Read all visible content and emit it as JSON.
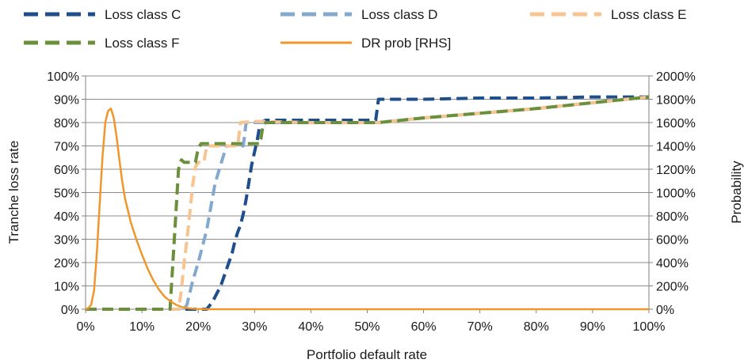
{
  "chart_data": {
    "type": "line",
    "title": "",
    "xlabel": "Portfolio default rate",
    "ylabel": "Tranche loss rate",
    "y2label": "Probability",
    "xlim": [
      0,
      100
    ],
    "ylim": [
      0,
      100
    ],
    "y2lim": [
      0,
      2000
    ],
    "x_ticks": [
      "0%",
      "10%",
      "20%",
      "30%",
      "40%",
      "50%",
      "60%",
      "70%",
      "80%",
      "90%",
      "100%"
    ],
    "y_ticks": [
      "0%",
      "10%",
      "20%",
      "30%",
      "40%",
      "50%",
      "60%",
      "70%",
      "80%",
      "90%",
      "100%"
    ],
    "y2_ticks": [
      "0%",
      "200%",
      "400%",
      "600%",
      "800%",
      "1000%",
      "1200%",
      "1400%",
      "1600%",
      "1800%",
      "2000%"
    ],
    "grid": "horizontal",
    "legend_position": "top",
    "series": [
      {
        "name": "Loss class C",
        "axis": "left",
        "style": "dashed",
        "color": "#1f4e8c",
        "points": [
          [
            0,
            0
          ],
          [
            21.5,
            0
          ],
          [
            22.5,
            3
          ],
          [
            24,
            10
          ],
          [
            26,
            24
          ],
          [
            26.5,
            29
          ],
          [
            27,
            33
          ],
          [
            27.5,
            36
          ],
          [
            28,
            41
          ],
          [
            28.5,
            47
          ],
          [
            29.5,
            62
          ],
          [
            30.5,
            73
          ],
          [
            31,
            80
          ],
          [
            32,
            81
          ],
          [
            51.5,
            81
          ],
          [
            52,
            90
          ],
          [
            60,
            90
          ],
          [
            70,
            90.5
          ],
          [
            80,
            90.5
          ],
          [
            90,
            91
          ],
          [
            100,
            91
          ]
        ]
      },
      {
        "name": "Loss class D",
        "axis": "left",
        "style": "dashed",
        "color": "#84a9cf",
        "points": [
          [
            0,
            0
          ],
          [
            17.5,
            0
          ],
          [
            18,
            2
          ],
          [
            19,
            12
          ],
          [
            20,
            20
          ],
          [
            21.5,
            34
          ],
          [
            23,
            54
          ],
          [
            24,
            62
          ],
          [
            25,
            70
          ],
          [
            28,
            70
          ],
          [
            28.5,
            80
          ],
          [
            40,
            80
          ],
          [
            48,
            80
          ],
          [
            52,
            80
          ],
          [
            60,
            82
          ],
          [
            70,
            84
          ],
          [
            80,
            86
          ],
          [
            90,
            88.5
          ],
          [
            100,
            91
          ]
        ]
      },
      {
        "name": "Loss class E",
        "axis": "left",
        "style": "dashed",
        "color": "#f7c492",
        "points": [
          [
            0,
            0
          ],
          [
            16.5,
            0
          ],
          [
            17,
            8
          ],
          [
            17.5,
            20
          ],
          [
            18,
            30
          ],
          [
            18.5,
            41
          ],
          [
            19,
            53
          ],
          [
            19.5,
            61
          ],
          [
            20,
            63
          ],
          [
            21,
            63
          ],
          [
            21.5,
            70
          ],
          [
            27,
            70
          ],
          [
            27.5,
            80
          ],
          [
            30,
            80.5
          ],
          [
            40,
            80
          ],
          [
            48,
            80
          ],
          [
            52,
            80
          ],
          [
            60,
            82
          ],
          [
            70,
            84
          ],
          [
            80,
            86
          ],
          [
            90,
            88.5
          ],
          [
            100,
            91
          ]
        ]
      },
      {
        "name": "Loss class F",
        "axis": "left",
        "style": "dashed",
        "color": "#6b8f3a",
        "points": [
          [
            0,
            0
          ],
          [
            15,
            0
          ],
          [
            15.5,
            20
          ],
          [
            16,
            40
          ],
          [
            16.5,
            60
          ],
          [
            17,
            64
          ],
          [
            17.5,
            63
          ],
          [
            19.5,
            63
          ],
          [
            20,
            69
          ],
          [
            20.5,
            71
          ],
          [
            24,
            71
          ],
          [
            31,
            71
          ],
          [
            31.5,
            79
          ],
          [
            32,
            80
          ],
          [
            40,
            80
          ],
          [
            48,
            80
          ],
          [
            52,
            80
          ],
          [
            60,
            82
          ],
          [
            70,
            84
          ],
          [
            80,
            86
          ],
          [
            90,
            88.5
          ],
          [
            100,
            91
          ]
        ]
      },
      {
        "name": "DR prob [RHS]",
        "axis": "right",
        "style": "solid",
        "color": "#f0962b",
        "points": [
          [
            0,
            0
          ],
          [
            0.5,
            10
          ],
          [
            1,
            40
          ],
          [
            1.5,
            160
          ],
          [
            2,
            480
          ],
          [
            2.5,
            900
          ],
          [
            3,
            1300
          ],
          [
            3.5,
            1600
          ],
          [
            4,
            1700
          ],
          [
            4.5,
            1720
          ],
          [
            5,
            1640
          ],
          [
            5.5,
            1480
          ],
          [
            6,
            1280
          ],
          [
            6.5,
            1100
          ],
          [
            7,
            950
          ],
          [
            8,
            750
          ],
          [
            9,
            600
          ],
          [
            10,
            470
          ],
          [
            11,
            350
          ],
          [
            12,
            250
          ],
          [
            13,
            170
          ],
          [
            14,
            110
          ],
          [
            15,
            70
          ],
          [
            16,
            40
          ],
          [
            17,
            20
          ],
          [
            18,
            10
          ],
          [
            19,
            5
          ],
          [
            20,
            2
          ],
          [
            22,
            0
          ],
          [
            100,
            0
          ]
        ]
      }
    ]
  }
}
